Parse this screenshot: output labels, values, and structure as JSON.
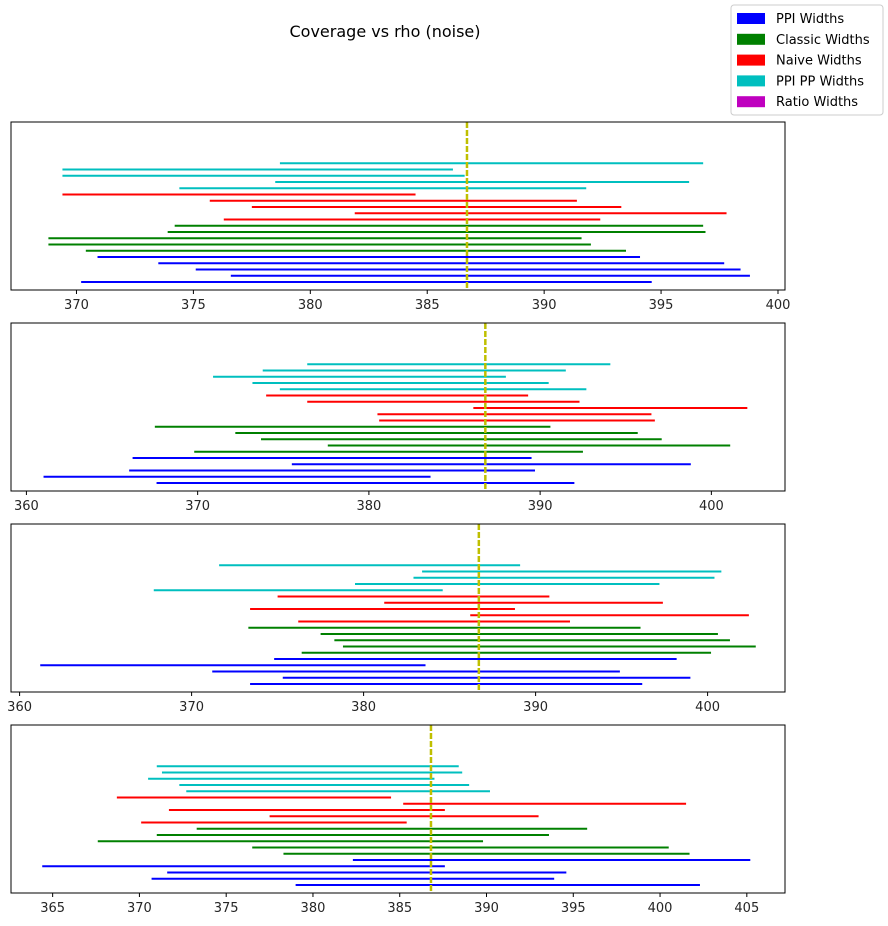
{
  "chart_data": {
    "type": "interval",
    "title": "Coverage vs rho (noise)",
    "legend": {
      "placement": "top-right",
      "entries": [
        {
          "label": "PPI Widths",
          "color": "#0000ff"
        },
        {
          "label": "Classic Widths",
          "color": "#008000"
        },
        {
          "label": "Naive Widths",
          "color": "#ff0000"
        },
        {
          "label": "PPI PP Widths",
          "color": "#00bfbf"
        },
        {
          "label": "Ratio Widths",
          "color": "#bf00bf"
        }
      ]
    },
    "reference_line": {
      "color": "#bfbf00",
      "style": "dashed"
    },
    "panels": [
      {
        "xlim": [
          367.2,
          400.3
        ],
        "xticks": [
          370,
          375,
          380,
          385,
          390,
          395,
          400
        ],
        "true_value": 386.7,
        "series": [
          {
            "name": "PPI Widths",
            "intervals": [
              [
                370.2,
                394.6
              ],
              [
                376.6,
                398.8
              ],
              [
                375.1,
                398.4
              ],
              [
                373.5,
                397.7
              ],
              [
                370.9,
                394.1
              ]
            ]
          },
          {
            "name": "Classic Widths",
            "intervals": [
              [
                370.4,
                393.5
              ],
              [
                368.8,
                392.0
              ],
              [
                368.8,
                391.6
              ],
              [
                373.9,
                396.9
              ],
              [
                374.2,
                396.8
              ]
            ]
          },
          {
            "name": "Naive Widths",
            "intervals": [
              [
                376.3,
                392.4
              ],
              [
                381.9,
                397.8
              ],
              [
                377.5,
                393.3
              ],
              [
                375.7,
                391.4
              ],
              [
                369.4,
                384.5
              ]
            ]
          },
          {
            "name": "PPI PP Widths",
            "intervals": [
              [
                374.4,
                391.8
              ],
              [
                378.5,
                396.2
              ],
              [
                369.4,
                386.6
              ],
              [
                369.4,
                386.1
              ],
              [
                378.7,
                396.8
              ]
            ]
          }
        ]
      },
      {
        "xlim": [
          359.1,
          404.3
        ],
        "xticks": [
          360,
          370,
          380,
          390,
          400
        ],
        "true_value": 386.8,
        "series": [
          {
            "name": "PPI Widths",
            "intervals": [
              [
                367.6,
                392.0
              ],
              [
                361.0,
                383.6
              ],
              [
                366.0,
                389.7
              ],
              [
                375.5,
                398.8
              ],
              [
                366.2,
                389.5
              ]
            ]
          },
          {
            "name": "Classic Widths",
            "intervals": [
              [
                369.8,
                392.5
              ],
              [
                377.6,
                401.1
              ],
              [
                373.7,
                397.1
              ],
              [
                372.2,
                395.7
              ],
              [
                367.5,
                390.6
              ]
            ]
          },
          {
            "name": "Naive Widths",
            "intervals": [
              [
                380.6,
                396.7
              ],
              [
                380.5,
                396.5
              ],
              [
                386.1,
                402.1
              ],
              [
                376.4,
                392.3
              ],
              [
                374.0,
                389.3
              ]
            ]
          },
          {
            "name": "PPI PP Widths",
            "intervals": [
              [
                374.8,
                392.7
              ],
              [
                373.2,
                390.5
              ],
              [
                370.9,
                388.0
              ],
              [
                373.8,
                391.5
              ],
              [
                376.4,
                394.1
              ]
            ]
          }
        ]
      },
      {
        "xlim": [
          359.5,
          404.5
        ],
        "xticks": [
          360,
          370,
          380,
          390,
          400
        ],
        "true_value": 386.7,
        "series": [
          {
            "name": "PPI Widths",
            "intervals": [
              [
                373.4,
                396.2
              ],
              [
                375.3,
                399.0
              ],
              [
                371.2,
                394.9
              ],
              [
                361.2,
                383.6
              ],
              [
                374.8,
                398.2
              ]
            ]
          },
          {
            "name": "Classic Widths",
            "intervals": [
              [
                376.4,
                400.2
              ],
              [
                378.8,
                402.8
              ],
              [
                378.3,
                401.3
              ],
              [
                377.5,
                400.6
              ],
              [
                373.3,
                396.1
              ]
            ]
          },
          {
            "name": "Naive Widths",
            "intervals": [
              [
                376.2,
                392.0
              ],
              [
                386.2,
                402.4
              ],
              [
                373.4,
                388.8
              ],
              [
                381.2,
                397.4
              ],
              [
                375.0,
                390.8
              ]
            ]
          },
          {
            "name": "PPI PP Widths",
            "intervals": [
              [
                367.8,
                384.6
              ],
              [
                379.5,
                397.2
              ],
              [
                382.9,
                400.4
              ],
              [
                383.4,
                400.8
              ],
              [
                371.6,
                389.1
              ]
            ]
          }
        ]
      },
      {
        "xlim": [
          362.6,
          407.2
        ],
        "xticks": [
          365,
          370,
          375,
          380,
          385,
          390,
          395,
          400,
          405
        ],
        "true_value": 386.8,
        "series": [
          {
            "name": "PPI Widths",
            "intervals": [
              [
                379.0,
                402.3
              ],
              [
                370.7,
                393.9
              ],
              [
                371.6,
                394.6
              ],
              [
                364.4,
                387.6
              ],
              [
                382.3,
                405.2
              ]
            ]
          },
          {
            "name": "Classic Widths",
            "intervals": [
              [
                378.3,
                401.7
              ],
              [
                376.5,
                400.5
              ],
              [
                367.6,
                389.8
              ],
              [
                371.0,
                393.6
              ],
              [
                373.3,
                395.8
              ]
            ]
          },
          {
            "name": "Naive Widths",
            "intervals": [
              [
                370.1,
                385.4
              ],
              [
                377.5,
                393.0
              ],
              [
                371.7,
                387.6
              ],
              [
                385.2,
                401.5
              ],
              [
                368.7,
                384.5
              ]
            ]
          },
          {
            "name": "PPI PP Widths",
            "intervals": [
              [
                372.7,
                390.2
              ],
              [
                372.3,
                389.0
              ],
              [
                370.5,
                387.0
              ],
              [
                371.3,
                388.6
              ],
              [
                371.0,
                388.4
              ]
            ]
          }
        ]
      }
    ]
  }
}
